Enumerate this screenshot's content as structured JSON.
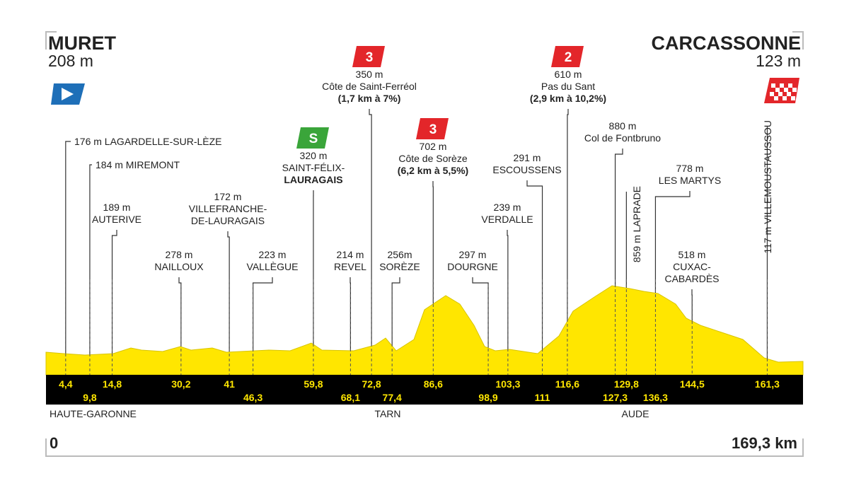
{
  "start": {
    "name": "MURET",
    "altitude": "208 m"
  },
  "finish": {
    "name": "CARCASSONNE",
    "altitude": "123 m"
  },
  "distance": {
    "start": "0",
    "end": "169,3 km"
  },
  "regions": [
    "HAUTE-GARONNE",
    "TARN",
    "AUDE"
  ],
  "waypoints": [
    {
      "km": "4,4",
      "lines": [
        "176 m LAGARDELLE-SUR-LÈZE"
      ]
    },
    {
      "km": "9,8",
      "lines": [
        "184 m MIREMONT"
      ]
    },
    {
      "km": "14,8",
      "lines": [
        "189 m",
        "AUTERIVE"
      ]
    },
    {
      "km": "30,2",
      "lines": [
        "278 m",
        "NAILLOUX"
      ]
    },
    {
      "km": "41",
      "lines": [
        "172 m",
        "VILLEFRANCHE-",
        "DE-LAURAGAIS"
      ]
    },
    {
      "km": "46,3",
      "lines": [
        "223 m",
        "VALLÈGUE"
      ]
    },
    {
      "km": "59,8",
      "lines": [
        "320 m",
        "SAINT-FÉLIX-",
        "LAURAGAIS"
      ],
      "category": "S"
    },
    {
      "km": "68,1",
      "lines": [
        "214 m",
        "REVEL"
      ]
    },
    {
      "km": "72,8",
      "lines": [
        "350 m",
        "Côte de Saint-Ferréol",
        "(1,7 km à 7%)"
      ],
      "category": "3"
    },
    {
      "km": "77,4",
      "lines": [
        "256m",
        "SORÈZE"
      ]
    },
    {
      "km": "86,6",
      "lines": [
        "702 m",
        "Côte de Sorèze",
        "(6,2 km à 5,5%)"
      ],
      "category": "3"
    },
    {
      "km": "98,9",
      "lines": [
        "297 m",
        "DOURGNE"
      ]
    },
    {
      "km": "103,3",
      "lines": [
        "239 m",
        "VERDALLE"
      ]
    },
    {
      "km": "111",
      "lines": [
        "291 m",
        "ESCOUSSENS"
      ]
    },
    {
      "km": "116,6",
      "lines": [
        "610 m",
        "Pas du Sant",
        "(2,9 km à 10,2%)"
      ],
      "category": "2"
    },
    {
      "km": "127,3",
      "lines": [
        "880 m",
        "Col de Fontbruno"
      ]
    },
    {
      "km": "129,8",
      "lines": [
        "859 m LAPRADE"
      ]
    },
    {
      "km": "136,3",
      "lines": [
        "778 m",
        "LES MARTYS"
      ]
    },
    {
      "km": "144,5",
      "lines": [
        "518 m",
        "CUXAC-",
        "CABARDÈS"
      ]
    },
    {
      "km": "161,3",
      "lines": [
        "117 m VILLEMOUSTAUSSOU"
      ]
    }
  ]
}
